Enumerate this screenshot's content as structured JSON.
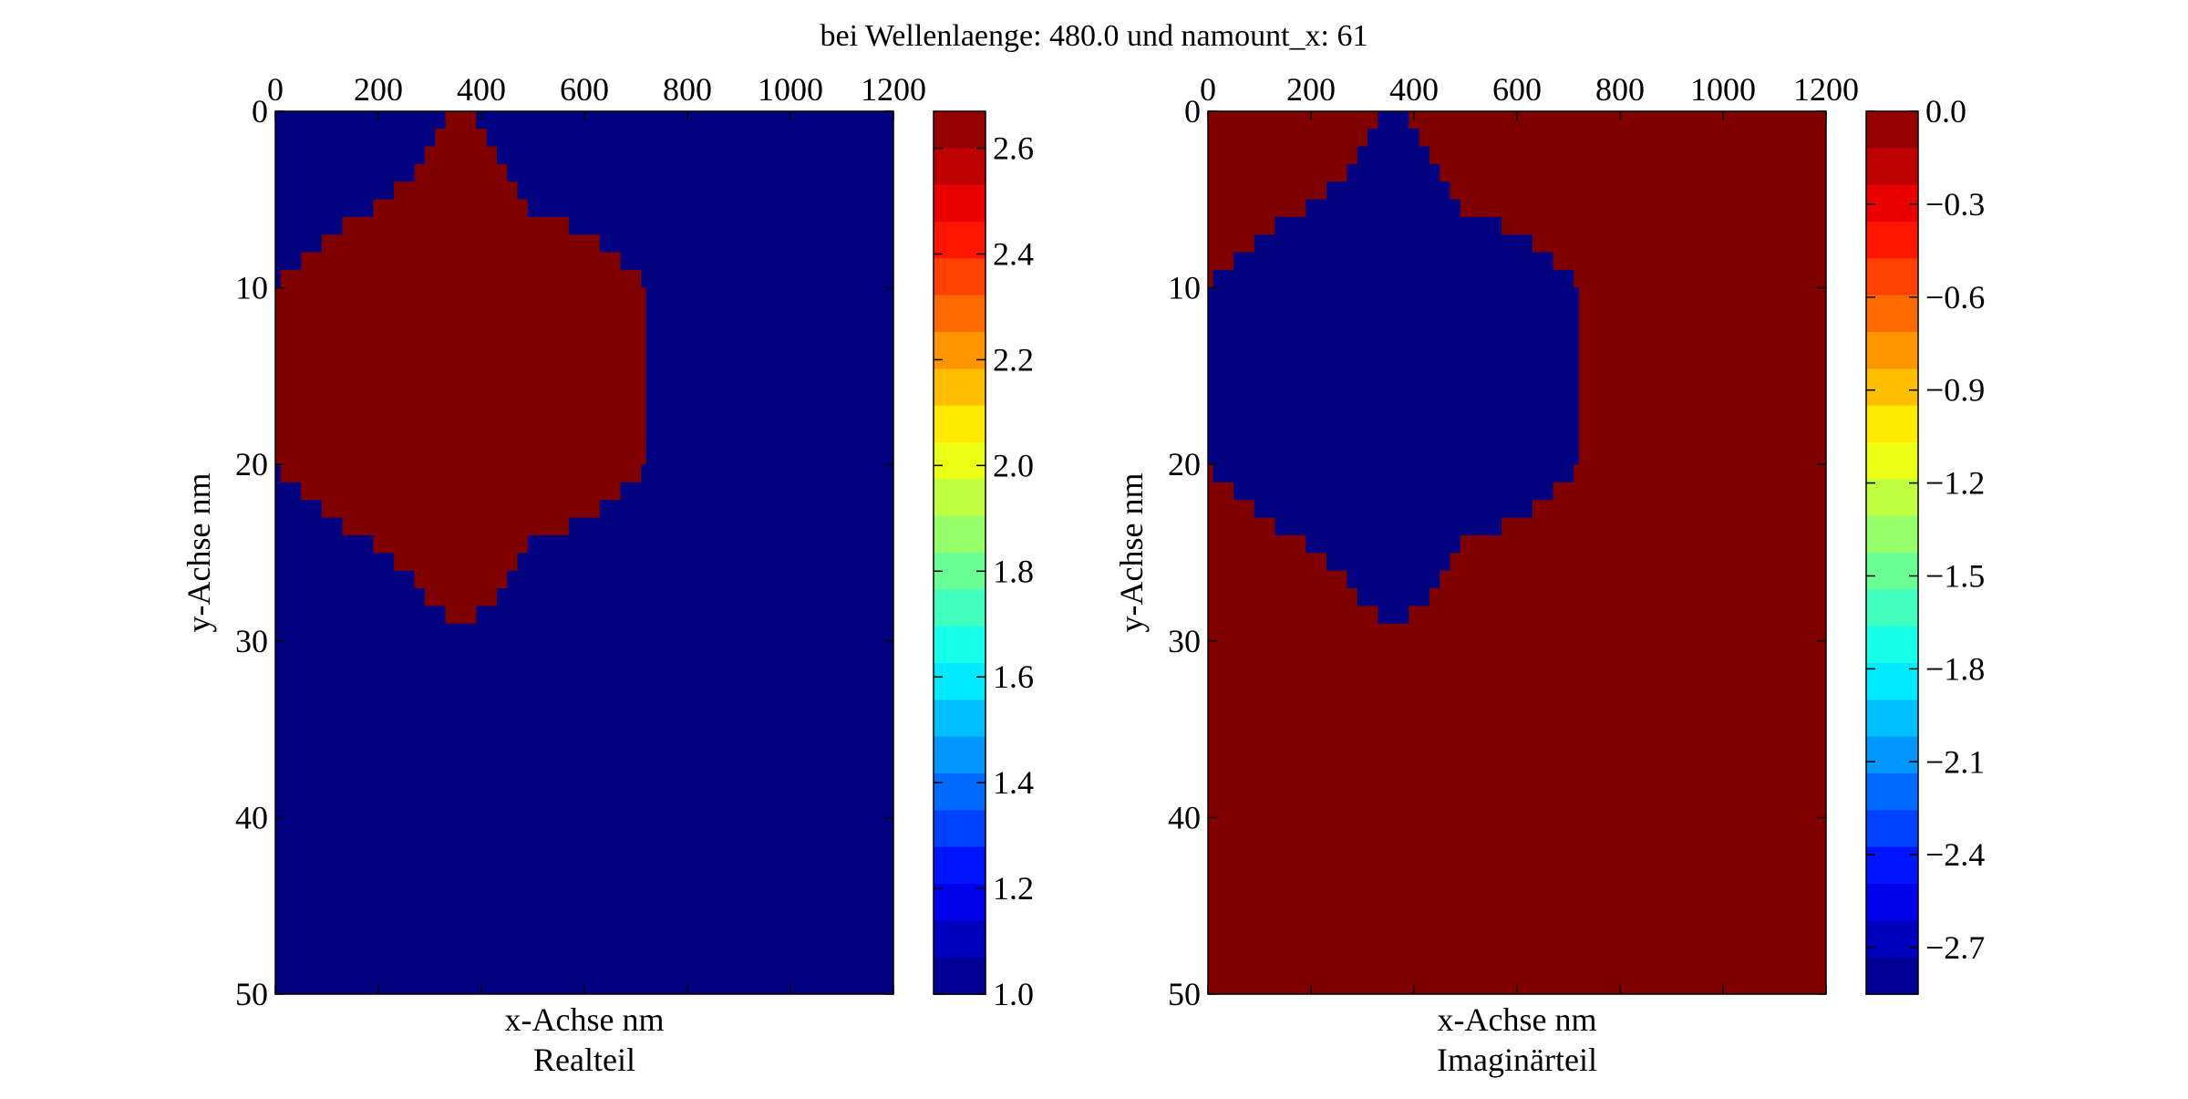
{
  "figure": {
    "suptitle": "bei Wellenlaenge: 480.0 und namount_x: 61"
  },
  "chart_data": [
    {
      "type": "heatmap",
      "subtitle": "Realteil",
      "xlabel": "x-Achse nm",
      "ylabel": "y-Achse nm",
      "xlim": [
        0,
        1200
      ],
      "ylim": [
        0,
        50
      ],
      "x_ticks": [
        0,
        200,
        400,
        600,
        800,
        1000,
        1200
      ],
      "y_ticks": [
        0,
        10,
        20,
        30,
        40,
        50
      ],
      "xaxis_position": "top",
      "yaxis_inverted": true,
      "colormap": "jet",
      "background_value": 1.0,
      "inclusion_value": 2.67,
      "colorbar": {
        "min": 1.0,
        "max": 2.67,
        "ticks": [
          1.0,
          1.2,
          1.4,
          1.6,
          1.8,
          2.0,
          2.2,
          2.4,
          2.6
        ]
      },
      "inclusion_rows": [
        {
          "y": 0,
          "x0": 330,
          "x1": 390
        },
        {
          "y": 1,
          "x0": 310,
          "x1": 410
        },
        {
          "y": 2,
          "x0": 290,
          "x1": 430
        },
        {
          "y": 3,
          "x0": 270,
          "x1": 450
        },
        {
          "y": 4,
          "x0": 230,
          "x1": 470
        },
        {
          "y": 5,
          "x0": 190,
          "x1": 490
        },
        {
          "y": 6,
          "x0": 130,
          "x1": 570
        },
        {
          "y": 7,
          "x0": 90,
          "x1": 630
        },
        {
          "y": 8,
          "x0": 50,
          "x1": 670
        },
        {
          "y": 9,
          "x0": 10,
          "x1": 710
        },
        {
          "y": 10,
          "x0": 0,
          "x1": 720
        },
        {
          "y": 11,
          "x0": 0,
          "x1": 720
        },
        {
          "y": 12,
          "x0": 0,
          "x1": 720
        },
        {
          "y": 13,
          "x0": 0,
          "x1": 720
        },
        {
          "y": 14,
          "x0": 0,
          "x1": 720
        },
        {
          "y": 15,
          "x0": 0,
          "x1": 720
        },
        {
          "y": 16,
          "x0": 0,
          "x1": 720
        },
        {
          "y": 17,
          "x0": 0,
          "x1": 720
        },
        {
          "y": 18,
          "x0": 0,
          "x1": 720
        },
        {
          "y": 19,
          "x0": 0,
          "x1": 720
        },
        {
          "y": 20,
          "x0": 10,
          "x1": 710
        },
        {
          "y": 21,
          "x0": 50,
          "x1": 670
        },
        {
          "y": 22,
          "x0": 90,
          "x1": 630
        },
        {
          "y": 23,
          "x0": 130,
          "x1": 570
        },
        {
          "y": 24,
          "x0": 190,
          "x1": 490
        },
        {
          "y": 25,
          "x0": 230,
          "x1": 470
        },
        {
          "y": 26,
          "x0": 270,
          "x1": 450
        },
        {
          "y": 27,
          "x0": 290,
          "x1": 430
        },
        {
          "y": 28,
          "x0": 330,
          "x1": 390
        }
      ]
    },
    {
      "type": "heatmap",
      "subtitle": "Imaginärteil",
      "xlabel": "x-Achse nm",
      "ylabel": "y-Achse nm",
      "xlim": [
        0,
        1200
      ],
      "ylim": [
        0,
        50
      ],
      "x_ticks": [
        0,
        200,
        400,
        600,
        800,
        1000,
        1200
      ],
      "y_ticks": [
        0,
        10,
        20,
        30,
        40,
        50
      ],
      "xaxis_position": "top",
      "yaxis_inverted": true,
      "colormap": "jet",
      "background_value": 0.0,
      "inclusion_value": -2.85,
      "colorbar": {
        "min": -2.85,
        "max": 0.0,
        "ticks": [
          0.0,
          -0.3,
          -0.6,
          -0.9,
          -1.2,
          -1.5,
          -1.8,
          -2.1,
          -2.4,
          -2.7
        ]
      },
      "inclusion_rows": [
        {
          "y": 0,
          "x0": 330,
          "x1": 390
        },
        {
          "y": 1,
          "x0": 310,
          "x1": 410
        },
        {
          "y": 2,
          "x0": 290,
          "x1": 430
        },
        {
          "y": 3,
          "x0": 270,
          "x1": 450
        },
        {
          "y": 4,
          "x0": 230,
          "x1": 470
        },
        {
          "y": 5,
          "x0": 190,
          "x1": 490
        },
        {
          "y": 6,
          "x0": 130,
          "x1": 570
        },
        {
          "y": 7,
          "x0": 90,
          "x1": 630
        },
        {
          "y": 8,
          "x0": 50,
          "x1": 670
        },
        {
          "y": 9,
          "x0": 10,
          "x1": 710
        },
        {
          "y": 10,
          "x0": 0,
          "x1": 720
        },
        {
          "y": 11,
          "x0": 0,
          "x1": 720
        },
        {
          "y": 12,
          "x0": 0,
          "x1": 720
        },
        {
          "y": 13,
          "x0": 0,
          "x1": 720
        },
        {
          "y": 14,
          "x0": 0,
          "x1": 720
        },
        {
          "y": 15,
          "x0": 0,
          "x1": 720
        },
        {
          "y": 16,
          "x0": 0,
          "x1": 720
        },
        {
          "y": 17,
          "x0": 0,
          "x1": 720
        },
        {
          "y": 18,
          "x0": 0,
          "x1": 720
        },
        {
          "y": 19,
          "x0": 0,
          "x1": 720
        },
        {
          "y": 20,
          "x0": 10,
          "x1": 710
        },
        {
          "y": 21,
          "x0": 50,
          "x1": 670
        },
        {
          "y": 22,
          "x0": 90,
          "x1": 630
        },
        {
          "y": 23,
          "x0": 130,
          "x1": 570
        },
        {
          "y": 24,
          "x0": 190,
          "x1": 490
        },
        {
          "y": 25,
          "x0": 230,
          "x1": 470
        },
        {
          "y": 26,
          "x0": 270,
          "x1": 450
        },
        {
          "y": 27,
          "x0": 290,
          "x1": 430
        },
        {
          "y": 28,
          "x0": 330,
          "x1": 390
        }
      ]
    }
  ]
}
